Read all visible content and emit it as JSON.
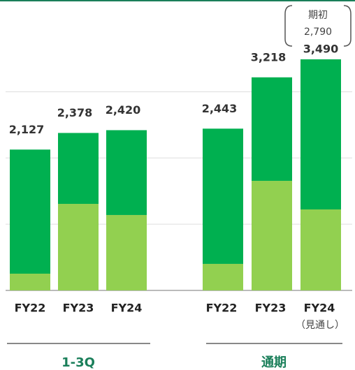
{
  "chart_data": {
    "type": "stacked_bar",
    "categories": [
      "FY22",
      "FY23",
      "FY24",
      "FY22",
      "FY23",
      "FY24"
    ],
    "groups": [
      "1-3Q",
      "通期"
    ],
    "forecast_label": "（見通し）",
    "series": [
      {
        "color": "#92d050",
        "values": [
          253,
          1307,
          1139,
          401,
          1655,
          1223
        ]
      },
      {
        "color": "#00b050",
        "values": [
          1874,
          1071,
          1281,
          2042,
          1563,
          2267
        ]
      }
    ],
    "totals": [
      2127,
      2378,
      2420,
      2443,
      3218,
      3490
    ],
    "total_labels": [
      "2,127",
      "2,378",
      "2,420",
      "2,443",
      "3,218",
      "3,490"
    ],
    "annotation_lines": [
      "期初",
      "2,790"
    ],
    "ylim": [
      0,
      4000
    ],
    "yticks": [
      0,
      1000,
      2000,
      3000
    ],
    "grid": true
  }
}
